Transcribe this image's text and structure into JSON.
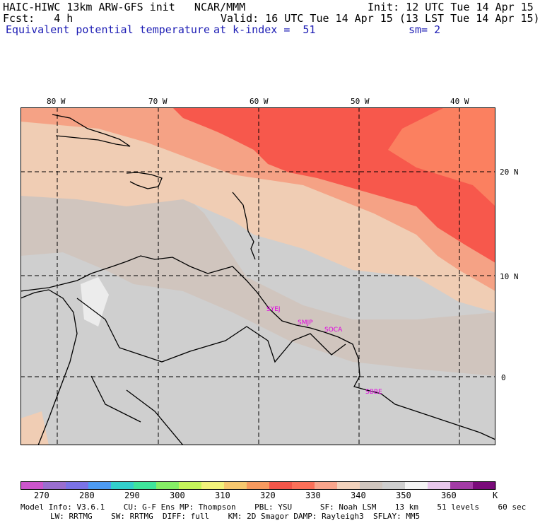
{
  "header": {
    "title": "HAIC-HIWC 13km ARW-GFS init   NCAR/MMM",
    "init": "Init: 12 UTC Tue 14 Apr 15",
    "fcst": "Fcst:   4 h",
    "valid": "Valid: 16 UTC Tue 14 Apr 15 (13 LST Tue 14 Apr 15)",
    "field": "Equivalent potential temperature",
    "level": "at k-index =  51",
    "smooth": "sm= 2"
  },
  "map": {
    "lon_labels": [
      "80 W",
      "70 W",
      "60 W",
      "50 W",
      "40 W"
    ],
    "lat_labels": [
      "20 N",
      "10 N",
      "0"
    ],
    "stations": [
      "SYEJ",
      "SMJP",
      "SOCA",
      "SBBE"
    ],
    "station_color": "#e000e0",
    "colors": {
      "c300": "#9cf0a0",
      "c330": "#f7584c",
      "c335": "#fb8060",
      "c340": "#f5a285",
      "c345": "#f0cdb4",
      "c350": "#d0c5be",
      "c355": "#cfcfcf",
      "c360": "#ececec",
      "coast": "#000000",
      "grid": "#000000"
    }
  },
  "colorbar": {
    "colors": [
      "#cc55cc",
      "#9a6ecf",
      "#7b73e6",
      "#4d9bf2",
      "#33d0cc",
      "#3fe59c",
      "#85ee66",
      "#c5f45b",
      "#f2f27b",
      "#f7c86f",
      "#f79a5f",
      "#f2564a",
      "#fb7059",
      "#f9a58c",
      "#f2d2bc",
      "#d0c6bf",
      "#cfcfcf",
      "#f4f4f4",
      "#e8c8ec",
      "#a33ca6",
      "#7a0a7a"
    ],
    "labels": [
      "270",
      "280",
      "290",
      "300",
      "310",
      "320",
      "330",
      "340",
      "350",
      "360"
    ],
    "unit": "K"
  },
  "footer": {
    "line1": "Model Info: V3.6.1    CU: G-F Ens MP: Thompson    PBL: YSU      SF: Noah LSM    13 km    51 levels    60 sec",
    "line2": "LW: RRTMG    SW: RRTMG  DIFF: full    KM: 2D Smagor DAMP: Rayleigh3  SFLAY: MM5"
  }
}
